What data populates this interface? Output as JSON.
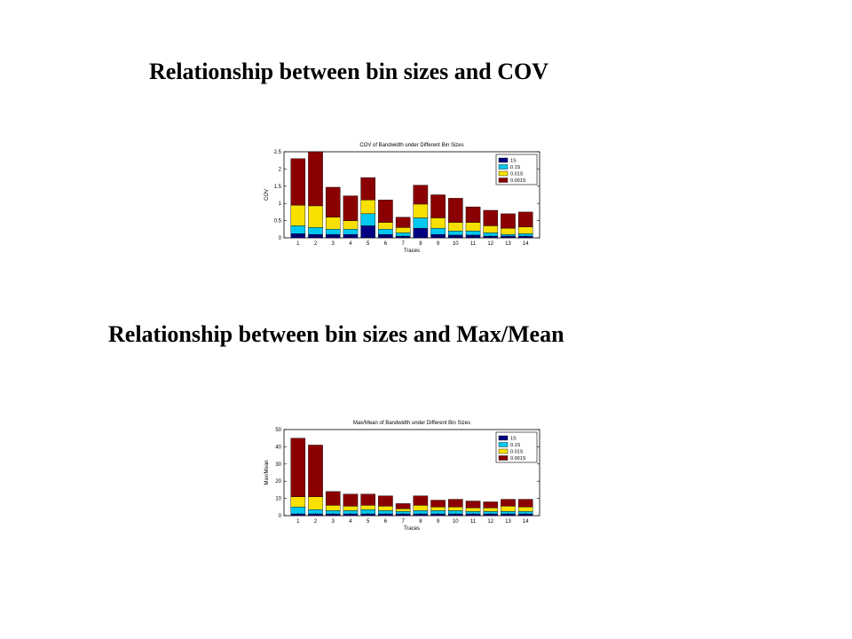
{
  "headings": {
    "cov": "Relationship between bin sizes and COV",
    "maxmean": "Relationship between bin sizes and Max/Mean"
  },
  "colors": {
    "s1": "#000080",
    "s01": "#00c8f0",
    "s001": "#f8e000",
    "s0001": "#8b0000"
  },
  "chart_data": [
    {
      "type": "bar",
      "stacked": true,
      "title": "COV of Bandwidth under Different Bin Sizes",
      "xlabel": "Traces",
      "ylabel": "COV",
      "ylim": [
        0,
        2.5
      ],
      "yticks": [
        "0",
        "0.5",
        "1",
        "1.5",
        "2",
        "2.5"
      ],
      "ytick_values": [
        0,
        0.5,
        1,
        1.5,
        2,
        2.5
      ],
      "legend_position": "top-right",
      "categories": [
        "1",
        "2",
        "3",
        "4",
        "5",
        "6",
        "7",
        "8",
        "9",
        "10",
        "11",
        "12",
        "13",
        "14"
      ],
      "series": [
        {
          "name": "1S",
          "values": [
            0.12,
            0.1,
            0.1,
            0.1,
            0.35,
            0.1,
            0.05,
            0.28,
            0.1,
            0.08,
            0.08,
            0.05,
            0.05,
            0.05
          ]
        },
        {
          "name": "0.1S",
          "values": [
            0.23,
            0.2,
            0.15,
            0.15,
            0.35,
            0.15,
            0.1,
            0.3,
            0.18,
            0.12,
            0.12,
            0.1,
            0.05,
            0.07
          ]
        },
        {
          "name": "0.01S",
          "values": [
            0.6,
            0.63,
            0.35,
            0.25,
            0.4,
            0.2,
            0.15,
            0.4,
            0.3,
            0.25,
            0.25,
            0.2,
            0.18,
            0.2
          ]
        },
        {
          "name": "0.001S",
          "values": [
            1.35,
            1.57,
            0.87,
            0.72,
            0.65,
            0.65,
            0.3,
            0.55,
            0.67,
            0.7,
            0.45,
            0.45,
            0.42,
            0.43
          ]
        }
      ]
    },
    {
      "type": "bar",
      "stacked": true,
      "title": "Max/Mean of Bandwidth under Different Bin Sizes",
      "xlabel": "Traces",
      "ylabel": "Max/Mean",
      "ylim": [
        0,
        50
      ],
      "yticks": [
        "0",
        "10",
        "20",
        "30",
        "40",
        "50"
      ],
      "ytick_values": [
        0,
        10,
        20,
        30,
        40,
        50
      ],
      "legend_position": "top-right",
      "categories": [
        "1",
        "2",
        "3",
        "4",
        "5",
        "6",
        "7",
        "8",
        "9",
        "10",
        "11",
        "12",
        "13",
        "14"
      ],
      "series": [
        {
          "name": "1S",
          "values": [
            1,
            1,
            1,
            1,
            1,
            1,
            1,
            1,
            1,
            1,
            1,
            1,
            1,
            1
          ]
        },
        {
          "name": "0.1S",
          "values": [
            4,
            2.5,
            2,
            2,
            2.5,
            2,
            1.5,
            2,
            2,
            2,
            1.5,
            1.5,
            1.5,
            1.5
          ]
        },
        {
          "name": "0.01S",
          "values": [
            6,
            7.5,
            3,
            2.5,
            2.5,
            2.5,
            1.5,
            3,
            2,
            2,
            2,
            2,
            3,
            2.5
          ]
        },
        {
          "name": "0.001S",
          "values": [
            34,
            30,
            8,
            7,
            6.5,
            6,
            3,
            5.5,
            4,
            4.5,
            4,
            3.5,
            4,
            4.5
          ]
        }
      ]
    }
  ]
}
